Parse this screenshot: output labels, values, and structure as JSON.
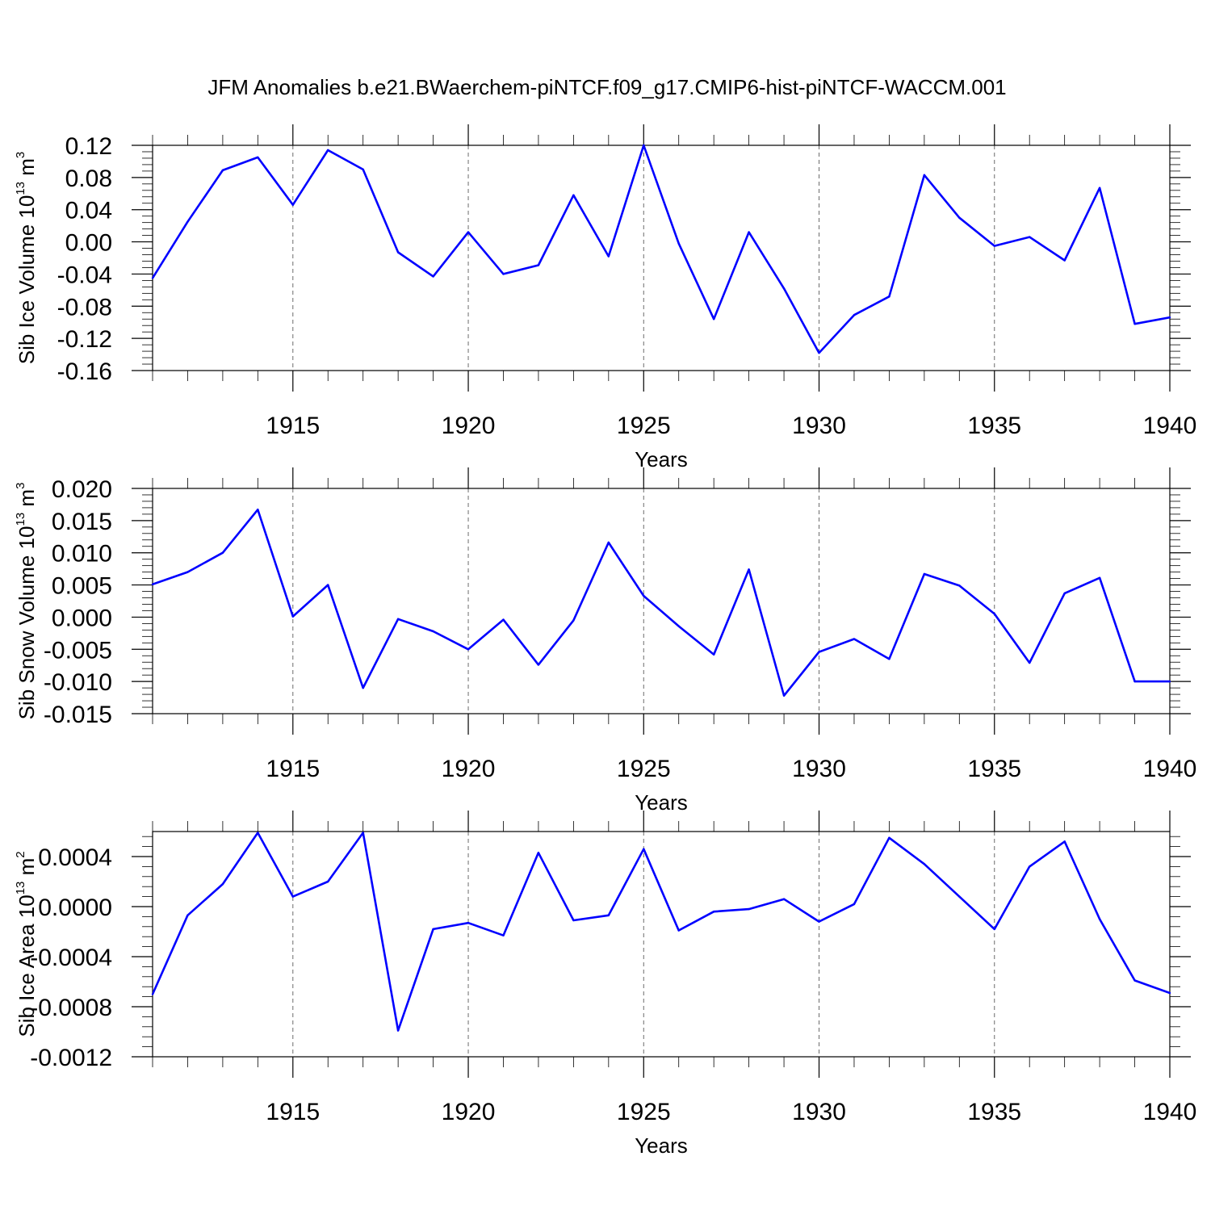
{
  "title": "JFM Anomalies b.e21.BWaerchem-piNTCF.f09_g17.CMIP6-hist-piNTCF-WACCM.001",
  "colors": {
    "line": "#0000ff",
    "axis": "#000000",
    "grid": "#6b6b6b"
  },
  "chart_data": [
    {
      "type": "line",
      "ylabel_main": "Sib Ice Volume 10",
      "ylabel_exp": "13",
      "ylabel_unit": " m",
      "ylabel_unit_exp": "3",
      "xlabel": "Years",
      "xlim": [
        1911,
        1940
      ],
      "ylim": [
        -0.16,
        0.12
      ],
      "yticks": [
        -0.16,
        -0.12,
        -0.08,
        -0.04,
        0.0,
        0.04,
        0.08,
        0.12
      ],
      "ytick_labels": [
        "-0.16",
        "-0.12",
        "-0.08",
        "-0.04",
        "0.00",
        "0.04",
        "0.08",
        "0.12"
      ],
      "xticks": [
        1915,
        1920,
        1925,
        1930,
        1935,
        1940
      ],
      "xtick_labels": [
        "1915",
        "1920",
        "1925",
        "1930",
        "1935",
        "1940"
      ],
      "grid_x": [
        1915,
        1920,
        1925,
        1930,
        1935
      ],
      "x": [
        1911,
        1912,
        1913,
        1914,
        1915,
        1916,
        1917,
        1918,
        1919,
        1920,
        1921,
        1922,
        1923,
        1924,
        1925,
        1926,
        1927,
        1928,
        1929,
        1930,
        1931,
        1932,
        1933,
        1934,
        1935,
        1936,
        1937,
        1938,
        1939,
        1940
      ],
      "values": [
        -0.045,
        0.025,
        0.089,
        0.105,
        0.046,
        0.114,
        0.09,
        -0.013,
        -0.043,
        0.012,
        -0.04,
        -0.029,
        0.058,
        -0.018,
        0.12,
        -0.002,
        -0.096,
        0.012,
        -0.058,
        -0.138,
        -0.091,
        -0.068,
        0.083,
        0.03,
        -0.005,
        0.006,
        -0.023,
        0.067,
        -0.102,
        -0.094
      ]
    },
    {
      "type": "line",
      "ylabel_main": "Sib Snow Volume 10",
      "ylabel_exp": "13",
      "ylabel_unit": " m",
      "ylabel_unit_exp": "3",
      "xlabel": "Years",
      "xlim": [
        1911,
        1940
      ],
      "ylim": [
        -0.015,
        0.02
      ],
      "yticks": [
        -0.015,
        -0.01,
        -0.005,
        0.0,
        0.005,
        0.01,
        0.015,
        0.02
      ],
      "ytick_labels": [
        "-0.015",
        "-0.010",
        "-0.005",
        "0.000",
        "0.005",
        "0.010",
        "0.015",
        "0.020"
      ],
      "xticks": [
        1915,
        1920,
        1925,
        1930,
        1935,
        1940
      ],
      "xtick_labels": [
        "1915",
        "1920",
        "1925",
        "1930",
        "1935",
        "1940"
      ],
      "grid_x": [
        1915,
        1920,
        1925,
        1930,
        1935
      ],
      "x": [
        1911,
        1912,
        1913,
        1914,
        1915,
        1916,
        1917,
        1918,
        1919,
        1920,
        1921,
        1922,
        1923,
        1924,
        1925,
        1926,
        1927,
        1928,
        1929,
        1930,
        1931,
        1932,
        1933,
        1934,
        1935,
        1936,
        1937,
        1938,
        1939,
        1940
      ],
      "values": [
        0.0051,
        0.007,
        0.01,
        0.0167,
        0.0001,
        0.005,
        -0.011,
        -0.0003,
        -0.0022,
        -0.005,
        -0.0004,
        -0.0074,
        -0.0005,
        0.0116,
        0.0033,
        -0.0014,
        -0.0058,
        0.0074,
        -0.0122,
        -0.0054,
        -0.0034,
        -0.0065,
        0.0067,
        0.0049,
        0.0005,
        -0.0071,
        0.0037,
        0.0061,
        -0.01,
        -0.01
      ]
    },
    {
      "type": "line",
      "ylabel_main": "Sib Ice Area 10",
      "ylabel_exp": "13",
      "ylabel_unit": " m",
      "ylabel_unit_exp": "2",
      "xlabel": "Years",
      "xlim": [
        1911,
        1940
      ],
      "ylim": [
        -0.0012,
        0.0006
      ],
      "yticks": [
        -0.0012,
        -0.0008,
        -0.0004,
        0.0,
        0.0004
      ],
      "ytick_labels": [
        "-0.0012",
        "-0.0008",
        "-0.0004",
        "0.0000",
        "0.0004"
      ],
      "xticks": [
        1915,
        1920,
        1925,
        1930,
        1935,
        1940
      ],
      "xtick_labels": [
        "1915",
        "1920",
        "1925",
        "1930",
        "1935",
        "1940"
      ],
      "grid_x": [
        1915,
        1920,
        1925,
        1930,
        1935
      ],
      "x": [
        1911,
        1912,
        1913,
        1914,
        1915,
        1916,
        1917,
        1918,
        1919,
        1920,
        1921,
        1922,
        1923,
        1924,
        1925,
        1926,
        1927,
        1928,
        1929,
        1930,
        1931,
        1932,
        1933,
        1934,
        1935,
        1936,
        1937,
        1938,
        1939,
        1940
      ],
      "values": [
        -0.0007,
        -7e-05,
        0.00018,
        0.00059,
        8e-05,
        0.0002,
        0.00059,
        -0.00099,
        -0.00018,
        -0.00013,
        -0.00023,
        0.00043,
        -0.00011,
        -7e-05,
        0.00046,
        -0.00019,
        -4e-05,
        -2e-05,
        6e-05,
        -0.00012,
        2e-05,
        0.00055,
        0.00034,
        8e-05,
        -0.00018,
        0.00032,
        0.00052,
        -0.0001,
        -0.00059,
        -0.00069
      ]
    }
  ]
}
